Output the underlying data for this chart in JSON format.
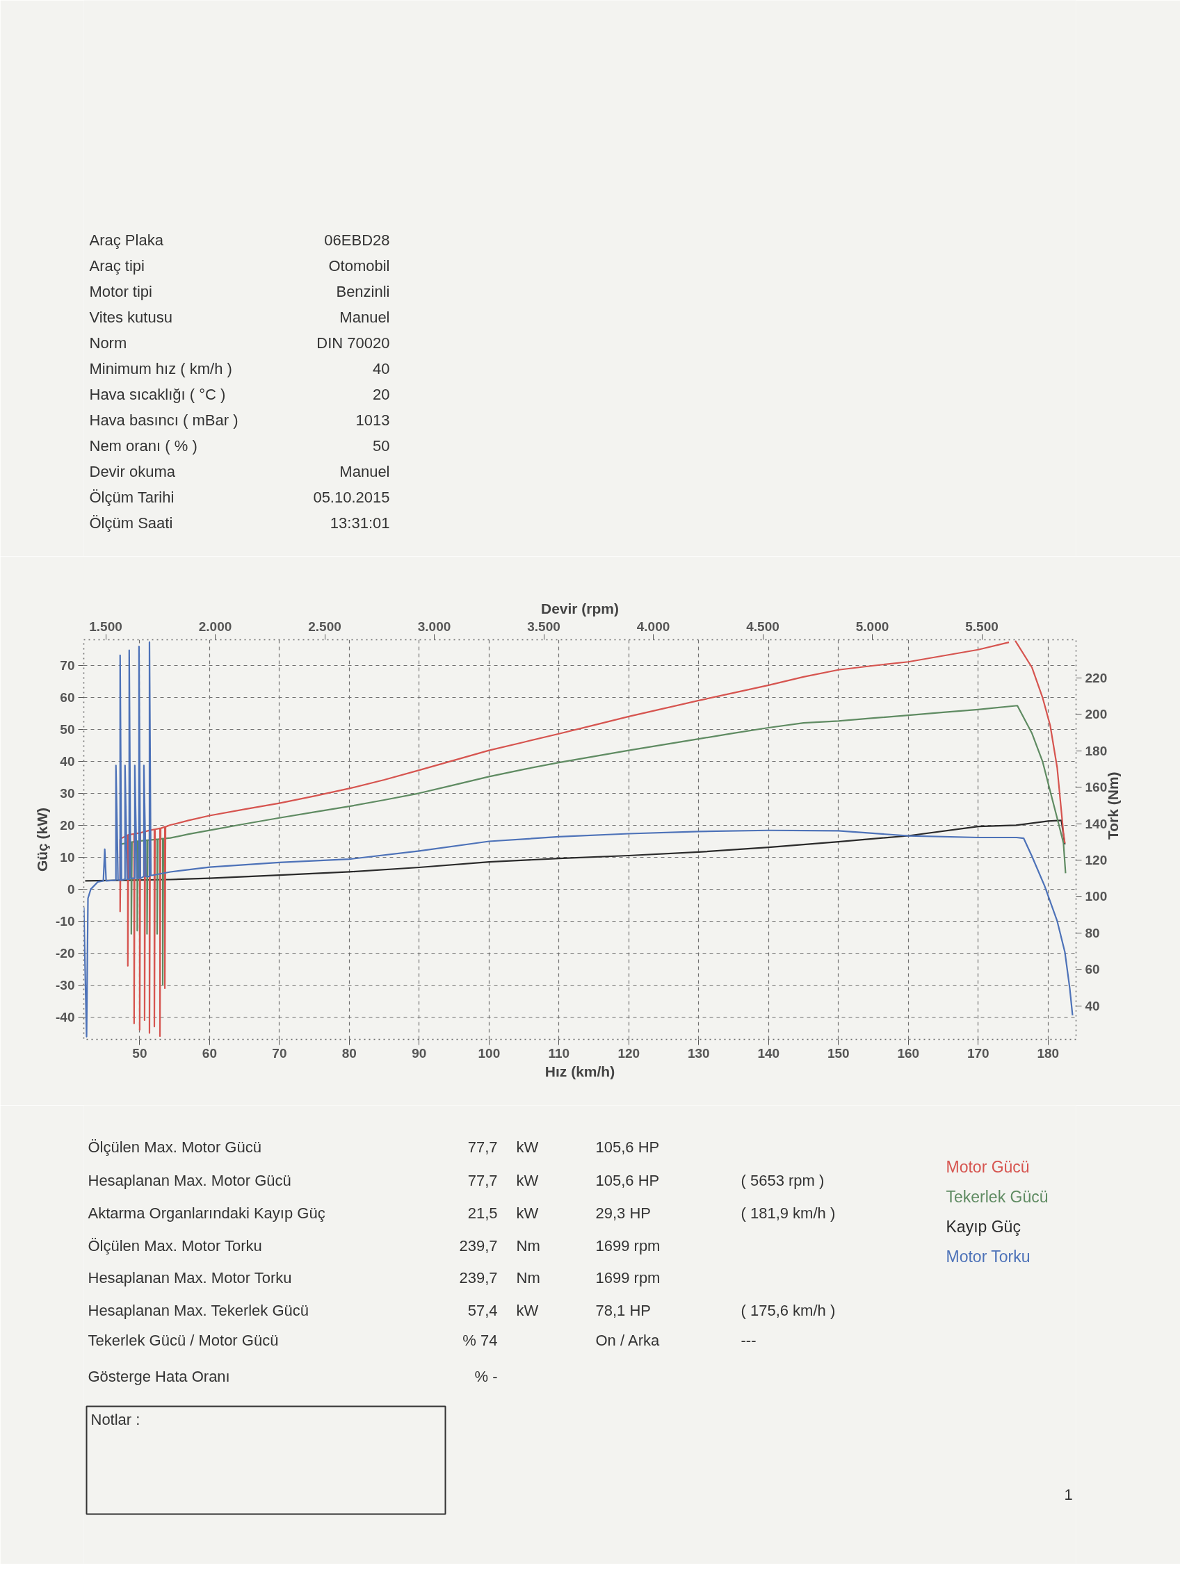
{
  "chart_data": {
    "type": "line",
    "xlabel": "Hız (km/h)",
    "ylabel": "Güç (kW)",
    "y2label": "Tork (Nm)",
    "x2label": "Devir (rpm)",
    "xlim": [
      42,
      184
    ],
    "xticks": [
      50,
      60,
      70,
      80,
      90,
      100,
      110,
      120,
      130,
      140,
      150,
      160,
      170,
      180
    ],
    "x2lim": [
      1400,
      5930
    ],
    "x2ticks": [
      {
        "value": 1500,
        "label": "1.500"
      },
      {
        "value": 2000,
        "label": "2.000"
      },
      {
        "value": 2500,
        "label": "2.500"
      },
      {
        "value": 3000,
        "label": "3.000"
      },
      {
        "value": 3500,
        "label": "3.500"
      },
      {
        "value": 4000,
        "label": "4.000"
      },
      {
        "value": 4500,
        "label": "4.500"
      },
      {
        "value": 5000,
        "label": "5.000"
      },
      {
        "value": 5500,
        "label": "5.500"
      }
    ],
    "ylim": [
      -47,
      78
    ],
    "yticks": [
      -40,
      -30,
      -20,
      -10,
      0,
      10,
      20,
      30,
      40,
      50,
      60,
      70
    ],
    "y2lim": [
      21.5,
      241
    ],
    "y2ticks": [
      40,
      60,
      80,
      100,
      120,
      140,
      160,
      180,
      200,
      220
    ],
    "grid": true,
    "series": [
      {
        "name": "Kayıp Güç",
        "color": "#2a2a2a",
        "x": [
          42.2,
          54.4,
          60,
          70,
          80,
          90,
          100,
          110,
          120,
          130,
          140,
          150,
          160,
          170,
          175.4,
          180,
          181.9,
          182.4
        ],
        "values": [
          2.6,
          3.0,
          3.4,
          4.4,
          5.4,
          6.8,
          8.5,
          9.6,
          10.5,
          11.6,
          13.1,
          14.8,
          16.7,
          19.6,
          20.0,
          21.3,
          21.5,
          14.0
        ]
      },
      {
        "name": "Tekerlek Gücü",
        "color": "#5f8b62",
        "x": [
          47.2,
          48.8,
          48.8,
          48.9,
          49.65,
          49.65,
          49.75,
          51.05,
          51.05,
          51.15,
          52.5,
          52.5,
          52.6,
          53.3,
          53.3,
          53.4,
          54.4,
          57,
          60,
          65,
          70,
          75,
          80,
          85,
          90,
          95,
          100,
          105,
          110,
          115,
          120,
          125,
          130,
          135,
          140,
          145,
          150,
          155,
          160,
          165,
          170,
          175.6,
          177.7,
          179.2,
          180.4,
          181.5,
          182.2,
          182.5
        ],
        "values": [
          14.0,
          14.7,
          -14,
          14.7,
          15.0,
          -13,
          15.0,
          15.3,
          -14,
          15.3,
          15.6,
          -14,
          15.6,
          15.8,
          -30,
          15.8,
          16.0,
          17.2,
          18.4,
          20.4,
          22.3,
          24.1,
          25.9,
          27.9,
          30.0,
          32.6,
          35.2,
          37.5,
          39.6,
          41.5,
          43.4,
          45.2,
          47.0,
          48.8,
          50.5,
          52.0,
          52.6,
          53.5,
          54.4,
          55.3,
          56.2,
          57.4,
          48.7,
          40.0,
          29.8,
          20.5,
          14.4,
          5.0
        ]
      },
      {
        "name": "Motor Gücü",
        "color": "#d6544f",
        "x": [
          47.2,
          47.2,
          47.3,
          48.3,
          48.3,
          48.4,
          49.2,
          49.2,
          49.3,
          50.0,
          50.0,
          50.1,
          50.7,
          50.7,
          50.8,
          51.4,
          51.4,
          51.5,
          52.1,
          52.1,
          52.2,
          52.9,
          52.9,
          53.0,
          53.6,
          53.6,
          53.7,
          54.3,
          57,
          60,
          65,
          70,
          75,
          80,
          85,
          90,
          95,
          100,
          105,
          110,
          115,
          120,
          125,
          130,
          135,
          140,
          145,
          150,
          155,
          160,
          165,
          170,
          174.4,
          174.8,
          175.3,
          177.7,
          179.2,
          180.3,
          181.3,
          182.2,
          182.4
        ],
        "values": [
          15.6,
          -7,
          15.8,
          16.9,
          -24,
          17.0,
          17.3,
          -42,
          17.3,
          17.6,
          -44,
          17.6,
          18.0,
          -41,
          18.0,
          18.4,
          -45,
          18.4,
          18.7,
          -43,
          18.7,
          19.0,
          -46,
          19.0,
          19.5,
          -31,
          19.5,
          20.0,
          21.5,
          23.0,
          25.0,
          26.9,
          29.1,
          31.5,
          34.2,
          37.2,
          40.3,
          43.4,
          46.0,
          48.6,
          51.3,
          54.0,
          56.5,
          59.0,
          61.4,
          63.8,
          66.4,
          68.6,
          69.9,
          71.1,
          73.0,
          74.9,
          77.2,
          null,
          77.7,
          69.3,
          60.0,
          51.2,
          38.0,
          17.5,
          14.4
        ]
      },
      {
        "name": "Motor Torku",
        "color": "#4d72b8",
        "axis": "y2",
        "x": [
          42.0,
          42.4,
          42.6,
          43.0,
          44.0,
          44.8,
          45.0,
          45.2,
          46.6,
          46.6,
          46.9,
          47.2,
          47.2,
          47.4,
          47.9,
          47.9,
          48.2,
          48.5,
          48.5,
          48.7,
          49.3,
          49.3,
          49.6,
          49.9,
          49.9,
          50.1,
          50.6,
          50.6,
          50.9,
          51.4,
          51.4,
          51.6,
          54.4,
          60,
          70,
          80,
          90,
          100,
          110,
          120,
          130,
          140,
          150,
          160,
          170,
          175.5,
          176.5,
          177.7,
          179.5,
          181.3,
          182.4,
          183.1,
          183.5
        ],
        "values": [
          94,
          23,
          99,
          104,
          108,
          108.6,
          126,
          108.6,
          109,
          172,
          109,
          109,
          232.5,
          109,
          109.5,
          172,
          109.5,
          109.5,
          235.2,
          110,
          110,
          172,
          110,
          110,
          237.3,
          110,
          111,
          172,
          111,
          111,
          239.7,
          111.5,
          113.5,
          116.1,
          118.7,
          120.5,
          125,
          130.3,
          132.8,
          134.5,
          135.7,
          136.3,
          136.1,
          133.3,
          132.4,
          132.4,
          132,
          122,
          105.8,
          86.5,
          69.5,
          49.6,
          34.7
        ]
      }
    ],
    "annotations": [
      "Araç Plaka",
      "06EBD28",
      "Araç tipi",
      "Otomobil",
      "Motor tipi",
      "Benzinli",
      "Vites kutusu",
      "Manuel",
      "Norm",
      "DIN 70020",
      "Minimum hız ( km/h )",
      "40",
      "Hava sıcaklığı ( °C )",
      "20",
      "Hava basıncı ( mBar )",
      "1013",
      "Nem oranı ( % )",
      "50",
      "Devir okuma",
      "Manuel",
      "Ölçüm Tarihi",
      "05.10.2015",
      "Ölçüm Saati",
      "13:31:01",
      "Ölçülen Max. Motor Gücü",
      "77,7",
      "kW",
      "105,6 HP",
      "Hesaplanan Max. Motor Gücü",
      "77,7",
      "kW",
      "105,6 HP",
      "( 5653 rpm )",
      "Aktarma Organlarındaki Kayıp Güç",
      "21,5",
      "kW",
      "29,3 HP",
      "( 181,9 km/h )",
      "Ölçülen Max. Motor Torku",
      "239,7",
      "Nm",
      "1699 rpm",
      "Hesaplanan Max. Motor Torku",
      "239,7",
      "Nm",
      "1699 rpm",
      "Hesaplanan Max. Tekerlek Gücü",
      "57,4",
      "kW",
      "78,1 HP",
      "( 175,6 km/h )",
      "Tekerlek Gücü / Motor Gücü",
      "% 74",
      "On / Arka",
      "---",
      "Gösterge Hata Oranı",
      "% -",
      "Notlar :",
      "1"
    ]
  }
}
